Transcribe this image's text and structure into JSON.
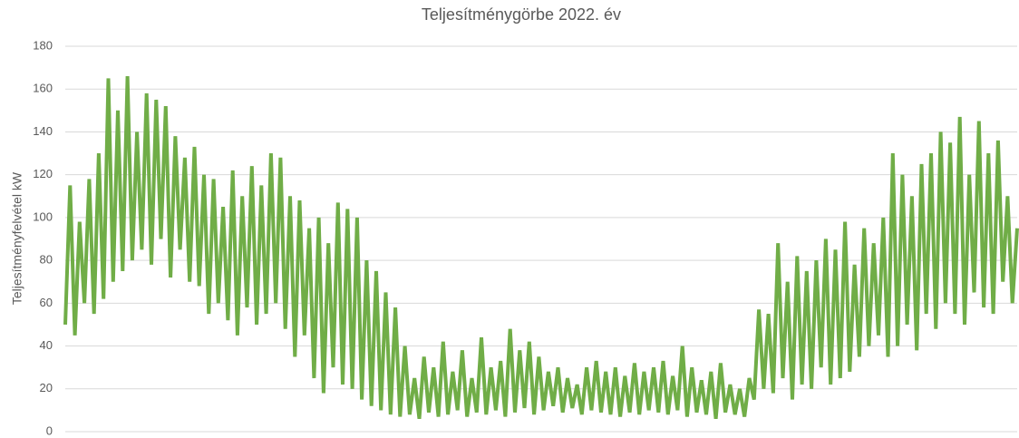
{
  "chart_data": {
    "type": "line",
    "title": "Teljesítménygörbe 2022. év",
    "ylabel": "Teljesítményfelvétel kW",
    "color": "#70ad47",
    "ylim": [
      0,
      180
    ],
    "yticks": [
      0,
      20,
      40,
      60,
      80,
      100,
      120,
      140,
      160,
      180
    ],
    "grid": true,
    "values": [
      50,
      115,
      45,
      98,
      60,
      118,
      55,
      130,
      62,
      165,
      70,
      150,
      75,
      166,
      80,
      140,
      85,
      158,
      78,
      155,
      90,
      152,
      72,
      138,
      85,
      128,
      70,
      133,
      68,
      120,
      55,
      118,
      60,
      105,
      52,
      122,
      45,
      110,
      58,
      124,
      50,
      115,
      55,
      130,
      60,
      128,
      48,
      110,
      35,
      108,
      45,
      95,
      25,
      100,
      18,
      88,
      30,
      107,
      22,
      104,
      20,
      100,
      15,
      80,
      12,
      75,
      10,
      65,
      8,
      58,
      7,
      40,
      8,
      25,
      6,
      35,
      9,
      30,
      7,
      42,
      8,
      28,
      10,
      38,
      7,
      25,
      9,
      44,
      8,
      30,
      10,
      33,
      7,
      48,
      9,
      38,
      11,
      42,
      8,
      35,
      10,
      28,
      12,
      30,
      9,
      25,
      11,
      22,
      8,
      30,
      10,
      33,
      9,
      28,
      8,
      30,
      7,
      26,
      9,
      32,
      8,
      28,
      10,
      30,
      9,
      33,
      8,
      26,
      10,
      40,
      7,
      30,
      9,
      24,
      8,
      28,
      6,
      32,
      9,
      22,
      8,
      20,
      7,
      25,
      15,
      57,
      20,
      55,
      18,
      88,
      25,
      70,
      15,
      82,
      22,
      75,
      20,
      80,
      30,
      90,
      22,
      85,
      25,
      98,
      28,
      78,
      35,
      95,
      40,
      88,
      45,
      100,
      35,
      130,
      40,
      120,
      50,
      110,
      38,
      125,
      55,
      130,
      48,
      140,
      60,
      135,
      55,
      147,
      50,
      120,
      65,
      145,
      58,
      130,
      55,
      136,
      70,
      110,
      60,
      95
    ]
  }
}
